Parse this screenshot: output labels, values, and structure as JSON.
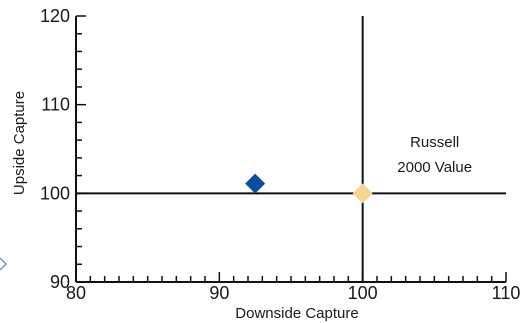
{
  "chart_data": {
    "type": "scatter",
    "xlabel": "Downside Capture",
    "ylabel": "Upside Capture",
    "xlim": [
      80,
      110
    ],
    "ylim": [
      90,
      120
    ],
    "xticks": [
      80,
      90,
      100,
      110
    ],
    "yticks": [
      90,
      100,
      110,
      120
    ],
    "x_minor_step": 1,
    "y_minor_step": 2,
    "reference_lines": {
      "x": 100,
      "y": 100
    },
    "points": [
      {
        "x": 92.5,
        "y": 101.1,
        "marker": "diamond",
        "color": "#0b4f9c"
      },
      {
        "x": 100,
        "y": 100,
        "marker": "diamond",
        "color": "#f6d58e"
      }
    ],
    "annotations": [
      {
        "text_lines": [
          "Russell",
          "2000 Value"
        ]
      }
    ]
  }
}
